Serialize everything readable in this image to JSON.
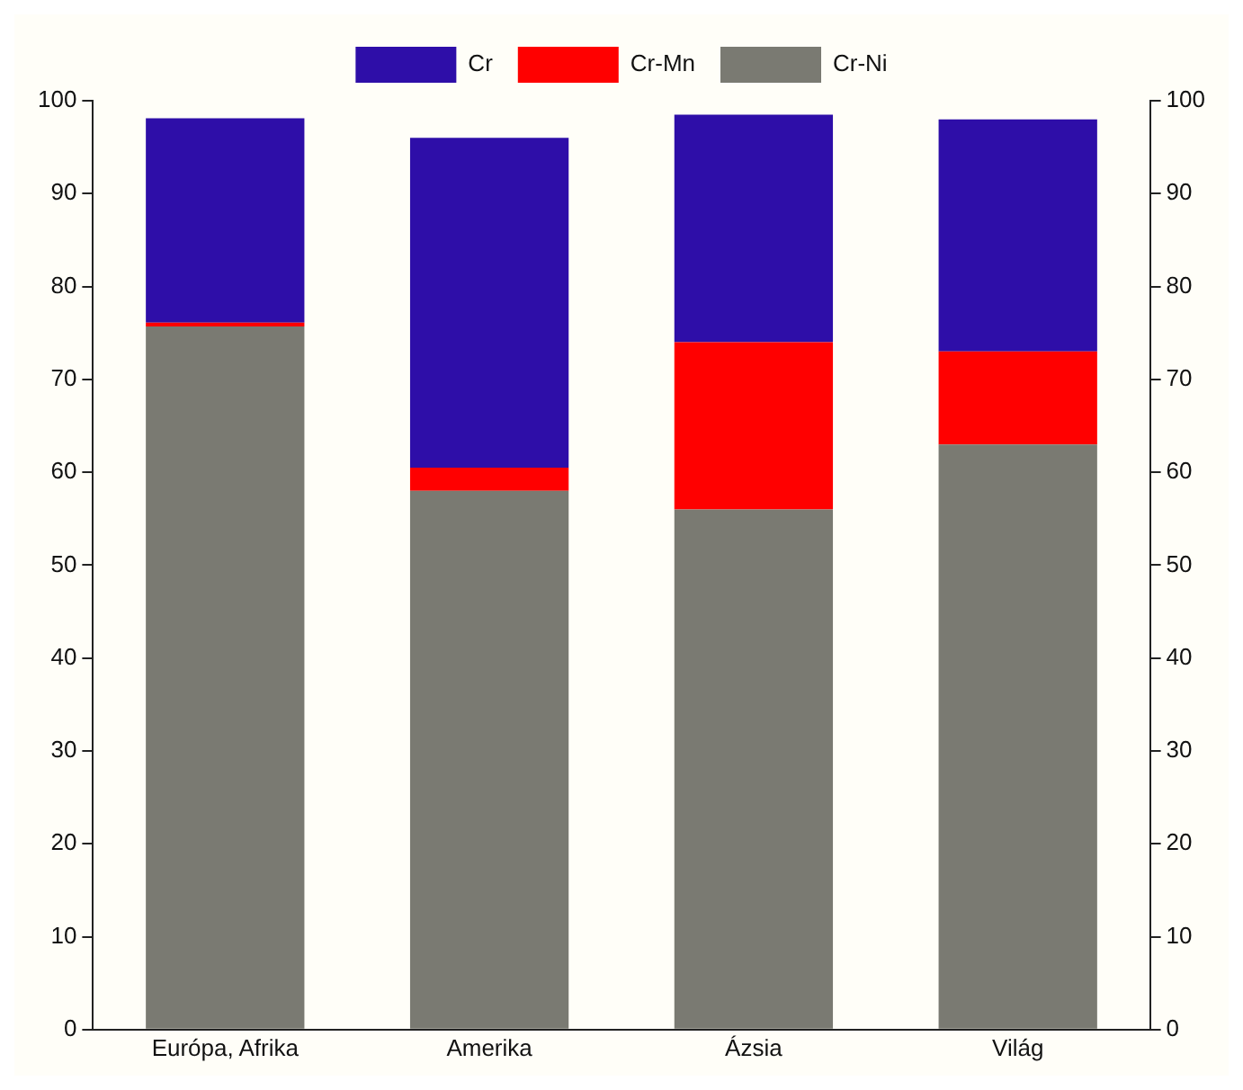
{
  "chart_data": {
    "type": "bar",
    "stacked": true,
    "categories": [
      "Európa, Afrika",
      "Amerika",
      "Ázsia",
      "Világ"
    ],
    "series": [
      {
        "name": "Cr-Ni",
        "color": "#7a7a72",
        "values": [
          75.7,
          58,
          56,
          63
        ]
      },
      {
        "name": "Cr-Mn",
        "color": "#ff0000",
        "values": [
          0.4,
          2.5,
          18,
          10
        ]
      },
      {
        "name": "Cr",
        "color": "#2e0ea8",
        "values": [
          22,
          35.5,
          24.5,
          25
        ]
      }
    ],
    "ylim": [
      0,
      100
    ],
    "yticks": [
      0,
      10,
      20,
      30,
      40,
      50,
      60,
      70,
      80,
      90,
      100
    ],
    "y2lim": [
      0,
      100
    ],
    "y2ticks": [
      0,
      10,
      20,
      30,
      40,
      50,
      60,
      70,
      80,
      90,
      100
    ],
    "grid": false,
    "legend": "top"
  }
}
